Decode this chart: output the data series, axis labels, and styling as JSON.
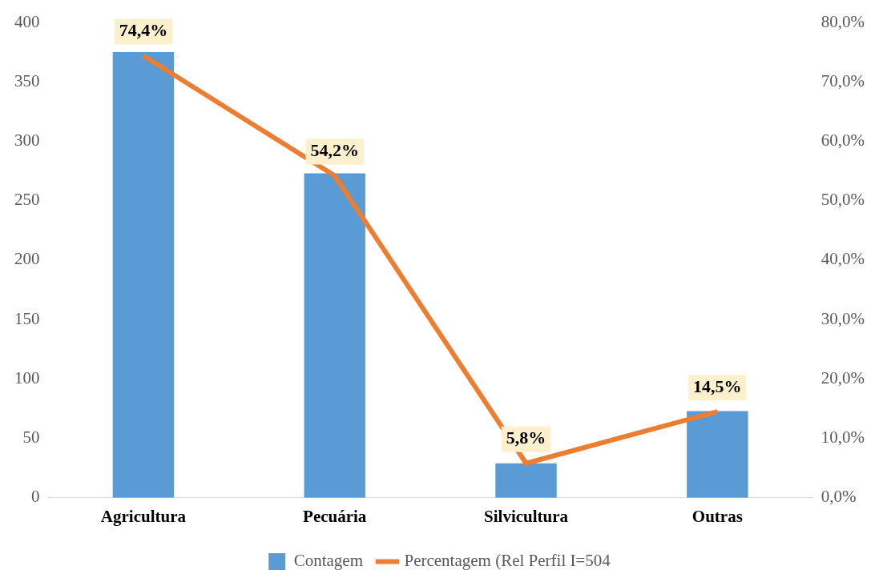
{
  "chart_data": {
    "type": "bar",
    "categories": [
      "Agricultura",
      "Pecuária",
      "Silvicultura",
      "Outras"
    ],
    "series": [
      {
        "name": "Contagem",
        "type": "bar",
        "color": "#5b9bd5",
        "values": [
          375,
          273,
          29,
          73
        ]
      },
      {
        "name": "Percentagem (Rel Perfil I=504",
        "type": "line",
        "axis": "y2",
        "color": "#ed7d31",
        "values": [
          74.4,
          54.2,
          5.8,
          14.5
        ],
        "value_labels": [
          "74,4%",
          "54,2%",
          "5,8%",
          "14,5%"
        ]
      }
    ],
    "ylim": [
      0,
      400
    ],
    "yticks": [
      0,
      50,
      100,
      150,
      200,
      250,
      300,
      350,
      400
    ],
    "y2lim": [
      0,
      80
    ],
    "y2ticks": [
      {
        "value": 0,
        "label": "0,0%"
      },
      {
        "value": 10,
        "label": "10,0%"
      },
      {
        "value": 20,
        "label": "20,0%"
      },
      {
        "value": 30,
        "label": "30,0%"
      },
      {
        "value": 40,
        "label": "40,0%"
      },
      {
        "value": 50,
        "label": "50,0%"
      },
      {
        "value": 60,
        "label": "60,0%"
      },
      {
        "value": 70,
        "label": "70,0%"
      },
      {
        "value": 80,
        "label": "80,0%"
      }
    ],
    "grid": false,
    "legend": "bottom",
    "marker": "none",
    "line_style": "solid"
  }
}
